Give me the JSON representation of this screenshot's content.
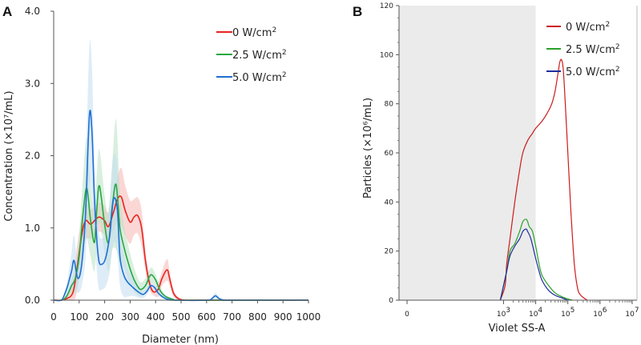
{
  "panels": {
    "a": {
      "letter": "A",
      "chart_data": {
        "type": "line",
        "xlabel": "Diameter (nm)",
        "ylabel": "Concentration (×10⁷/mL)",
        "xlim": [
          0,
          1000
        ],
        "ylim": [
          0,
          4.0
        ],
        "xticks": [
          "0",
          "100",
          "200",
          "300",
          "400",
          "500",
          "600",
          "700",
          "800",
          "900",
          "1000"
        ],
        "yticks": [
          "0.0",
          "1.0",
          "2.0",
          "3.0",
          "4.0"
        ],
        "legend_position": "top-right",
        "shaded_error_bands": true,
        "series": [
          {
            "name": "0 W/cm2",
            "color": "#e8231f",
            "band_color": "#f6b7b3",
            "x": [
              0,
              30,
              50,
              75,
              90,
              110,
              125,
              145,
              165,
              180,
              200,
              215,
              235,
              250,
              265,
              280,
              300,
              315,
              330,
              345,
              360,
              375,
              390,
              410,
              425,
              445,
              455,
              470,
              490,
              520,
              560,
              1000
            ],
            "y": [
              0,
              0,
              0.02,
              0.1,
              0.4,
              0.9,
              1.1,
              1.05,
              1.12,
              1.15,
              1.1,
              1.02,
              1.22,
              1.4,
              1.43,
              1.25,
              1.08,
              1.15,
              1.17,
              1.0,
              0.55,
              0.25,
              0.12,
              0.15,
              0.3,
              0.42,
              0.3,
              0.1,
              0.02,
              0,
              0,
              0
            ],
            "band": [
              0,
              0,
              0.05,
              0.15,
              0.3,
              0.25,
              0.25,
              0.2,
              0.2,
              0.2,
              0.2,
              0.2,
              0.25,
              0.3,
              0.4,
              0.35,
              0.3,
              0.25,
              0.25,
              0.25,
              0.15,
              0.1,
              0.05,
              0.1,
              0.1,
              0.15,
              0.1,
              0.05,
              0.02,
              0,
              0,
              0
            ]
          },
          {
            "name": "2.5 W/cm2",
            "color": "#28a745",
            "band_color": "#b9e2c3",
            "x": [
              0,
              30,
              50,
              70,
              85,
              100,
              115,
              130,
              145,
              160,
              170,
              180,
              200,
              215,
              230,
              245,
              260,
              275,
              290,
              305,
              320,
              340,
              360,
              375,
              385,
              400,
              420,
              440,
              470,
              500,
              1000
            ],
            "y": [
              0,
              0,
              0.05,
              0.2,
              0.3,
              0.6,
              1.2,
              1.55,
              1.1,
              0.8,
              1.3,
              1.58,
              1.05,
              0.8,
              1.3,
              1.6,
              1.0,
              0.75,
              0.55,
              0.38,
              0.25,
              0.15,
              0.2,
              0.32,
              0.35,
              0.28,
              0.12,
              0.05,
              0.01,
              0,
              0
            ],
            "band": [
              0,
              0,
              0.03,
              0.1,
              0.2,
              0.3,
              0.5,
              0.7,
              0.5,
              0.4,
              0.5,
              0.5,
              0.4,
              0.4,
              0.6,
              0.9,
              0.5,
              0.3,
              0.25,
              0.2,
              0.15,
              0.1,
              0.1,
              0.1,
              0.1,
              0.08,
              0.05,
              0.02,
              0.01,
              0,
              0
            ]
          },
          {
            "name": "5.0 W/cm2",
            "color": "#1f6fd1",
            "band_color": "#c2dcf3",
            "x": [
              0,
              30,
              45,
              55,
              70,
              80,
              95,
              110,
              125,
              140,
              150,
              160,
              175,
              190,
              205,
              220,
              235,
              250,
              260,
              275,
              290,
              310,
              330,
              350,
              365,
              380,
              395,
              410,
              430,
              450,
              480,
              600,
              620,
              635,
              650,
              670,
              700,
              1000
            ],
            "y": [
              0,
              0,
              0.1,
              0.2,
              0.4,
              0.55,
              0.3,
              0.5,
              1.2,
              2.55,
              2.35,
              1.4,
              0.6,
              0.5,
              0.6,
              0.9,
              1.4,
              1.25,
              0.6,
              0.35,
              0.25,
              0.18,
              0.12,
              0.08,
              0.12,
              0.2,
              0.18,
              0.1,
              0.04,
              0.01,
              0,
              0,
              0.02,
              0.06,
              0.02,
              0,
              0,
              0
            ],
            "band": [
              0,
              0,
              0.05,
              0.1,
              0.25,
              0.35,
              0.2,
              0.3,
              0.6,
              0.95,
              0.9,
              0.5,
              0.4,
              0.35,
              0.4,
              0.5,
              0.6,
              0.6,
              0.4,
              0.3,
              0.2,
              0.12,
              0.08,
              0.05,
              0.05,
              0.05,
              0.05,
              0.04,
              0.02,
              0.01,
              0,
              0,
              0.02,
              0.04,
              0.02,
              0,
              0,
              0
            ]
          }
        ]
      }
    },
    "b": {
      "letter": "B",
      "chart_data": {
        "type": "line",
        "xlabel": "Violet SS-A",
        "ylabel": "Particles (×10⁶/mL)",
        "x_scale": "log",
        "xlim_log10": [
          -0.25,
          7.15
        ],
        "ylim": [
          0,
          120
        ],
        "xtick_labels": [
          {
            "pos": 0,
            "base": "0",
            "exp": ""
          },
          {
            "pos": 3,
            "base": "10",
            "exp": "3"
          },
          {
            "pos": 4,
            "base": "10",
            "exp": "4"
          },
          {
            "pos": 5,
            "base": "10",
            "exp": "5"
          },
          {
            "pos": 6,
            "base": "10",
            "exp": "6"
          },
          {
            "pos": 7,
            "base": "10",
            "exp": "7"
          }
        ],
        "yticks": [
          "0",
          "20",
          "40",
          "60",
          "80",
          "100",
          "120"
        ],
        "shaded_region_log10": [
          -0.25,
          4
        ],
        "legend_position": "top-right",
        "series": [
          {
            "name": "0 W/cm2",
            "color": "#cc1b1b",
            "x_log10": [
              2.9,
              3.05,
              3.1,
              3.2,
              3.35,
              3.5,
              3.6,
              3.75,
              3.9,
              4.0,
              4.2,
              4.35,
              4.5,
              4.6,
              4.7,
              4.75,
              4.8,
              4.85,
              4.9,
              5.0,
              5.1,
              5.2,
              5.3,
              5.4,
              5.6
            ],
            "y": [
              0,
              6,
              15,
              25,
              40,
              53,
              60,
              65,
              68,
              70,
              73,
              76,
              80,
              85,
              93,
              97,
              98,
              95,
              85,
              60,
              35,
              15,
              5,
              2,
              0
            ]
          },
          {
            "name": "2.5 W/cm2",
            "color": "#2aa02a",
            "x_log10": [
              2.9,
              3.1,
              3.2,
              3.35,
              3.5,
              3.6,
              3.7,
              3.75,
              3.8,
              3.9,
              4.0,
              4.1,
              4.2,
              4.4,
              4.6,
              4.8,
              5.0,
              5.15
            ],
            "y": [
              0,
              12,
              20,
              23,
              28,
              32,
              33,
              32,
              30,
              28,
              22,
              15,
              10,
              6,
              3,
              1.5,
              0.5,
              0
            ]
          },
          {
            "name": "5.0 W/cm2",
            "color": "#1d2d9e",
            "x_log10": [
              2.9,
              3.1,
              3.2,
              3.35,
              3.5,
              3.6,
              3.7,
              3.75,
              3.85,
              4.0,
              4.1,
              4.2,
              4.4,
              4.6,
              4.8,
              5.0
            ],
            "y": [
              0,
              12,
              18,
              22,
              25,
              28,
              29,
              28,
              25,
              17,
              12,
              8,
              4,
              2,
              1,
              0
            ]
          }
        ]
      }
    }
  },
  "legend": {
    "items": [
      {
        "label_base": "0 W/cm",
        "label_exp": "2",
        "color": "#e8231f"
      },
      {
        "label_base": "2.5 W/cm",
        "label_exp": "2",
        "color": "#28a745"
      },
      {
        "label_base": "5.0 W/cm",
        "label_exp": "2",
        "color": "#1f6fd1"
      }
    ]
  }
}
